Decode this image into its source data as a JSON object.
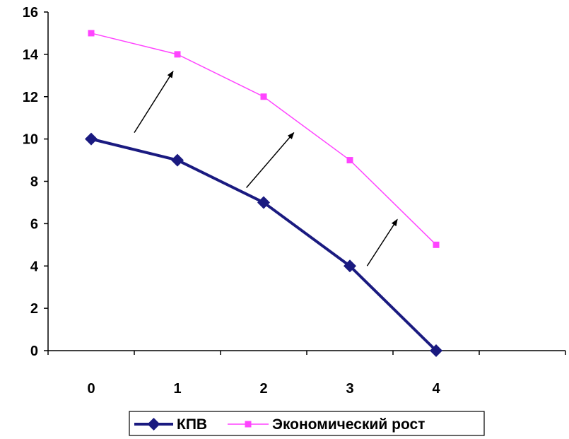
{
  "chart_data": {
    "type": "line",
    "title": "",
    "xlabel": "",
    "ylabel": "",
    "categories": [
      "0",
      "1",
      "2",
      "3",
      "4"
    ],
    "x": [
      0,
      1,
      2,
      3,
      4
    ],
    "xlim": [
      -0.5,
      5.5
    ],
    "ylim": [
      0,
      16
    ],
    "yticks": [
      0,
      2,
      4,
      6,
      8,
      10,
      12,
      14,
      16
    ],
    "grid": false,
    "legend_position": "bottom",
    "series": [
      {
        "name": "КПВ",
        "values": [
          10,
          9,
          7,
          4,
          0
        ],
        "color": "#1a1a80",
        "marker": "diamond"
      },
      {
        "name": "Экономический рост",
        "values": [
          15,
          14,
          12,
          9,
          5
        ],
        "color": "#ff44ff",
        "marker": "square"
      }
    ],
    "annotations": [
      {
        "type": "arrow",
        "from": [
          0.5,
          10.3
        ],
        "to": [
          0.95,
          13.2
        ]
      },
      {
        "type": "arrow",
        "from": [
          1.8,
          7.7
        ],
        "to": [
          2.35,
          10.3
        ]
      },
      {
        "type": "arrow",
        "from": [
          3.2,
          4.0
        ],
        "to": [
          3.55,
          6.2
        ]
      }
    ]
  }
}
